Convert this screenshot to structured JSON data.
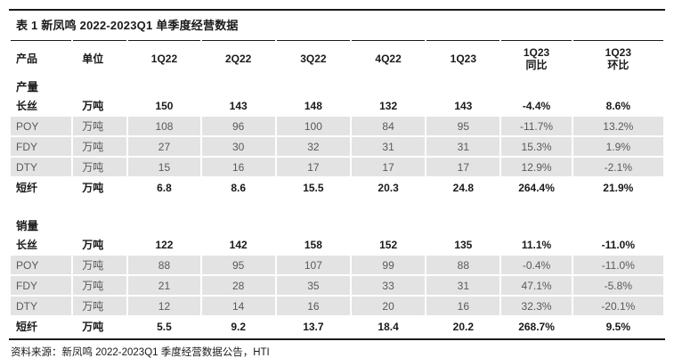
{
  "colors": {
    "rule": "#1a1a1a",
    "stripe_background": "#e3e3e3",
    "text_primary": "#1a1a1a",
    "text_secondary": "#595959",
    "page_background": "#ffffff"
  },
  "table": {
    "title": "表 1 新凤鸣 2022-2023Q1 单季度经营数据",
    "columns": [
      {
        "top": "产品",
        "bottom": ""
      },
      {
        "top": "单位",
        "bottom": ""
      },
      {
        "top": "1Q22",
        "bottom": ""
      },
      {
        "top": "2Q22",
        "bottom": ""
      },
      {
        "top": "3Q22",
        "bottom": ""
      },
      {
        "top": "4Q22",
        "bottom": ""
      },
      {
        "top": "1Q23",
        "bottom": ""
      },
      {
        "top": "1Q23",
        "bottom": "同比"
      },
      {
        "top": "1Q23",
        "bottom": "环比"
      }
    ],
    "sections": [
      {
        "label": "产量",
        "rows": [
          [
            "长丝",
            "万吨",
            "150",
            "143",
            "148",
            "132",
            "143",
            "-4.4%",
            "8.6%"
          ],
          [
            "POY",
            "万吨",
            "108",
            "96",
            "100",
            "84",
            "95",
            "-11.7%",
            "13.2%"
          ],
          [
            "FDY",
            "万吨",
            "27",
            "30",
            "32",
            "31",
            "31",
            "15.3%",
            "1.9%"
          ],
          [
            "DTY",
            "万吨",
            "15",
            "16",
            "17",
            "17",
            "17",
            "12.9%",
            "-2.1%"
          ],
          [
            "短纤",
            "万吨",
            "6.8",
            "8.6",
            "15.5",
            "20.3",
            "24.8",
            "264.4%",
            "21.9%"
          ]
        ]
      },
      {
        "label": "销量",
        "rows": [
          [
            "长丝",
            "万吨",
            "122",
            "142",
            "158",
            "152",
            "135",
            "11.1%",
            "-11.0%"
          ],
          [
            "POY",
            "万吨",
            "88",
            "95",
            "107",
            "99",
            "88",
            "-0.4%",
            "-11.0%"
          ],
          [
            "FDY",
            "万吨",
            "21",
            "28",
            "35",
            "33",
            "31",
            "47.1%",
            "-5.8%"
          ],
          [
            "DTY",
            "万吨",
            "12",
            "14",
            "16",
            "20",
            "16",
            "32.3%",
            "-20.1%"
          ],
          [
            "短纤",
            "万吨",
            "5.5",
            "9.2",
            "13.7",
            "18.4",
            "20.2",
            "268.7%",
            "9.5%"
          ]
        ]
      }
    ],
    "source": "资料来源：新凤鸣 2022-2023Q1 季度经营数据公告，HTI"
  }
}
